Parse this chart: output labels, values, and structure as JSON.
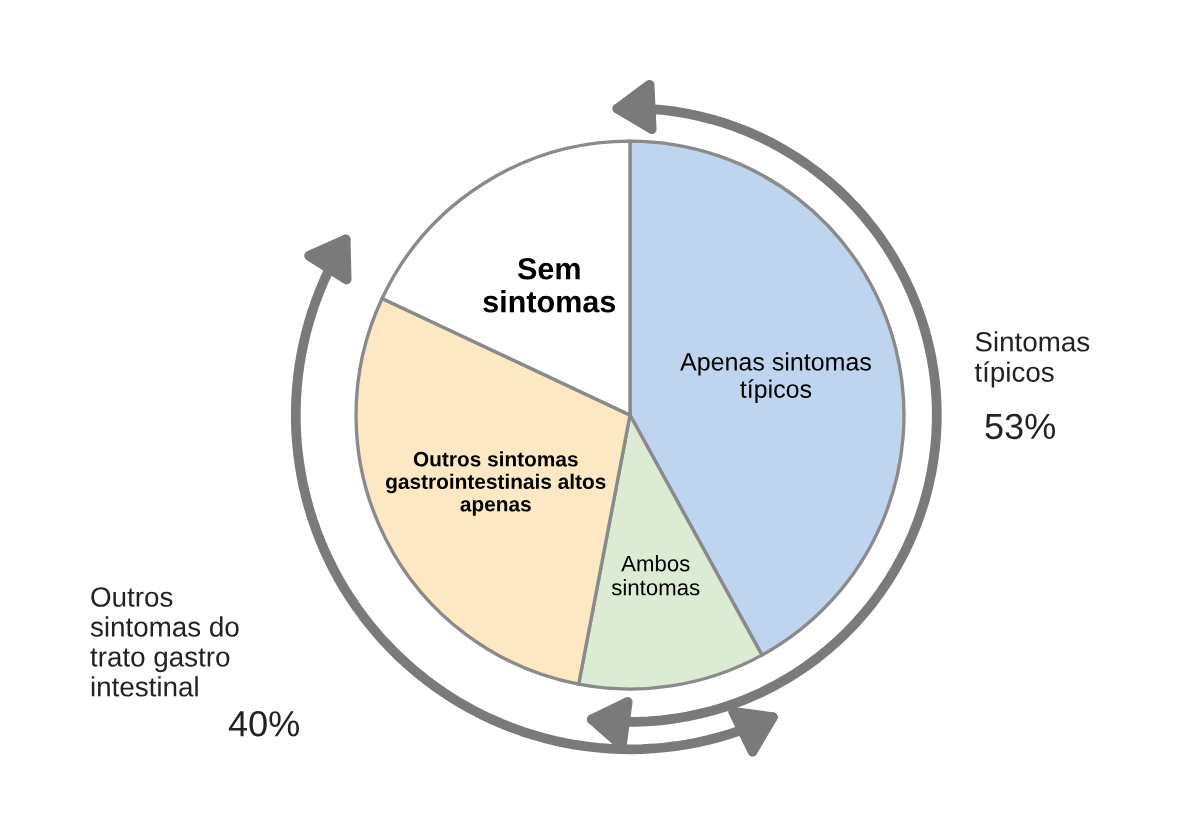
{
  "chart_data": {
    "type": "pie",
    "categories": [
      "Apenas sintomas típicos",
      "Ambos sintomas",
      "Outros sintomas gastrointestinais altos apenas",
      "Sem sintomas"
    ],
    "values": [
      42,
      11,
      29,
      18
    ],
    "colors": [
      "#bfd4ee",
      "#dcebd4",
      "#fce8c2",
      "#ffffff"
    ],
    "annotations": [
      "Sintomas típicos",
      "53%",
      "Outros sintomas do trato gastro intestinal",
      "40%"
    ]
  }
}
